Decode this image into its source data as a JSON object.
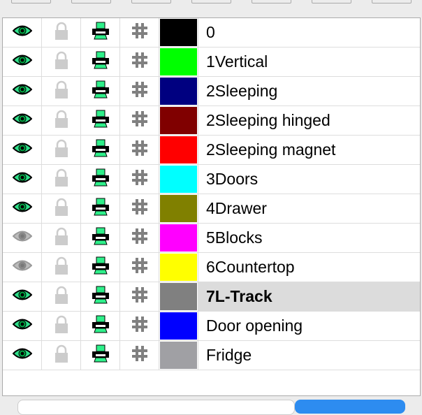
{
  "layers": [
    {
      "name": "0",
      "color": "#000000",
      "visible": true,
      "selected": false
    },
    {
      "name": "1Vertical",
      "color": "#00ff00",
      "visible": true,
      "selected": false
    },
    {
      "name": "2Sleeping",
      "color": "#000080",
      "visible": true,
      "selected": false
    },
    {
      "name": "2Sleeping hinged",
      "color": "#800000",
      "visible": true,
      "selected": false
    },
    {
      "name": "2Sleeping magnet",
      "color": "#ff0000",
      "visible": true,
      "selected": false
    },
    {
      "name": "3Doors",
      "color": "#00ffff",
      "visible": true,
      "selected": false
    },
    {
      "name": "4Drawer",
      "color": "#808000",
      "visible": true,
      "selected": false
    },
    {
      "name": "5Blocks",
      "color": "#ff00ff",
      "visible": false,
      "selected": false
    },
    {
      "name": "6Countertop",
      "color": "#ffff00",
      "visible": false,
      "selected": false
    },
    {
      "name": "7L-Track",
      "color": "#808080",
      "visible": true,
      "selected": true
    },
    {
      "name": "Door opening",
      "color": "#0000ff",
      "visible": true,
      "selected": false
    },
    {
      "name": "Fridge",
      "color": "#a0a0a4",
      "visible": true,
      "selected": false
    }
  ],
  "colors": {
    "eye_on": "#2ee08a",
    "eye_off": "#9a9a9a",
    "printer": "#2ef08a",
    "accent": "#2d8cf0"
  }
}
